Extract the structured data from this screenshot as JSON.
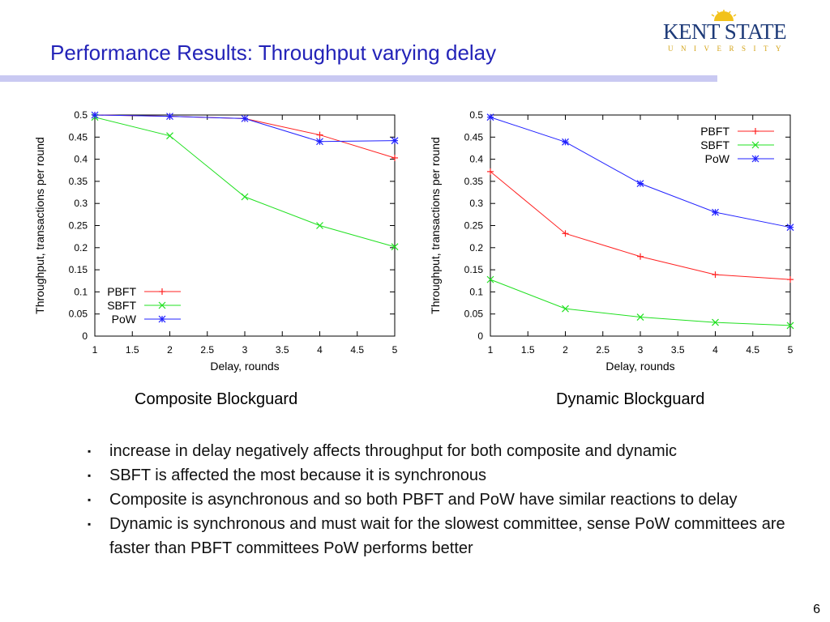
{
  "title": "Performance Results: Throughput varying delay",
  "logo": {
    "main": "KENT STATE",
    "sub": "UNIVERSITY",
    "colors": {
      "navy": "#1d3a78",
      "gold": "#d4a418"
    }
  },
  "chart_data": [
    {
      "type": "line",
      "caption": "Composite Blockguard",
      "xlabel": "Delay, rounds",
      "ylabel": "Throughput, transactions per round",
      "xlim": [
        1,
        5
      ],
      "ylim": [
        0,
        0.5
      ],
      "xticks": [
        "1",
        "1.5",
        "2",
        "2.5",
        "3",
        "3.5",
        "4",
        "4.5",
        "5"
      ],
      "yticks": [
        "0",
        "0.05",
        "0.1",
        "0.15",
        "0.2",
        "0.25",
        "0.3",
        "0.35",
        "0.4",
        "0.45",
        "0.5"
      ],
      "legend": "bottom-left",
      "x": [
        1,
        2,
        3,
        4,
        5
      ],
      "series": [
        {
          "name": "PBFT",
          "color": "#ff2020",
          "marker": "plus",
          "values": [
            0.5,
            0.497,
            0.492,
            0.455,
            0.403
          ]
        },
        {
          "name": "SBFT",
          "color": "#20e020",
          "marker": "cross",
          "values": [
            0.495,
            0.453,
            0.315,
            0.25,
            0.202
          ]
        },
        {
          "name": "PoW",
          "color": "#2020ff",
          "marker": "star",
          "values": [
            0.5,
            0.497,
            0.492,
            0.44,
            0.442
          ]
        }
      ]
    },
    {
      "type": "line",
      "caption": "Dynamic Blockguard",
      "xlabel": "Delay, rounds",
      "ylabel": "Throughput, transactions per round",
      "xlim": [
        1,
        5
      ],
      "ylim": [
        0,
        0.5
      ],
      "xticks": [
        "1",
        "1.5",
        "2",
        "2.5",
        "3",
        "3.5",
        "4",
        "4.5",
        "5"
      ],
      "yticks": [
        "0",
        "0.05",
        "0.1",
        "0.15",
        "0.2",
        "0.25",
        "0.3",
        "0.35",
        "0.4",
        "0.45",
        "0.5"
      ],
      "legend": "top-right",
      "x": [
        1,
        2,
        3,
        4,
        5
      ],
      "series": [
        {
          "name": "PBFT",
          "color": "#ff2020",
          "marker": "plus",
          "values": [
            0.372,
            0.232,
            0.18,
            0.139,
            0.128
          ]
        },
        {
          "name": "SBFT",
          "color": "#20e020",
          "marker": "cross",
          "values": [
            0.128,
            0.062,
            0.043,
            0.031,
            0.024
          ]
        },
        {
          "name": "PoW",
          "color": "#2020ff",
          "marker": "star",
          "values": [
            0.495,
            0.439,
            0.345,
            0.28,
            0.246
          ]
        }
      ]
    }
  ],
  "bullets": [
    "increase in delay negatively affects throughput  for both composite and dynamic",
    "SBFT is affected the most because it is synchronous",
    "Composite is asynchronous and so both PBFT and PoW have similar reactions to delay",
    "Dynamic is synchronous and must wait for the slowest committee, sense PoW committees are faster than PBFT committees PoW performs better"
  ],
  "bullet_glyph": "▪",
  "page_number": "6"
}
